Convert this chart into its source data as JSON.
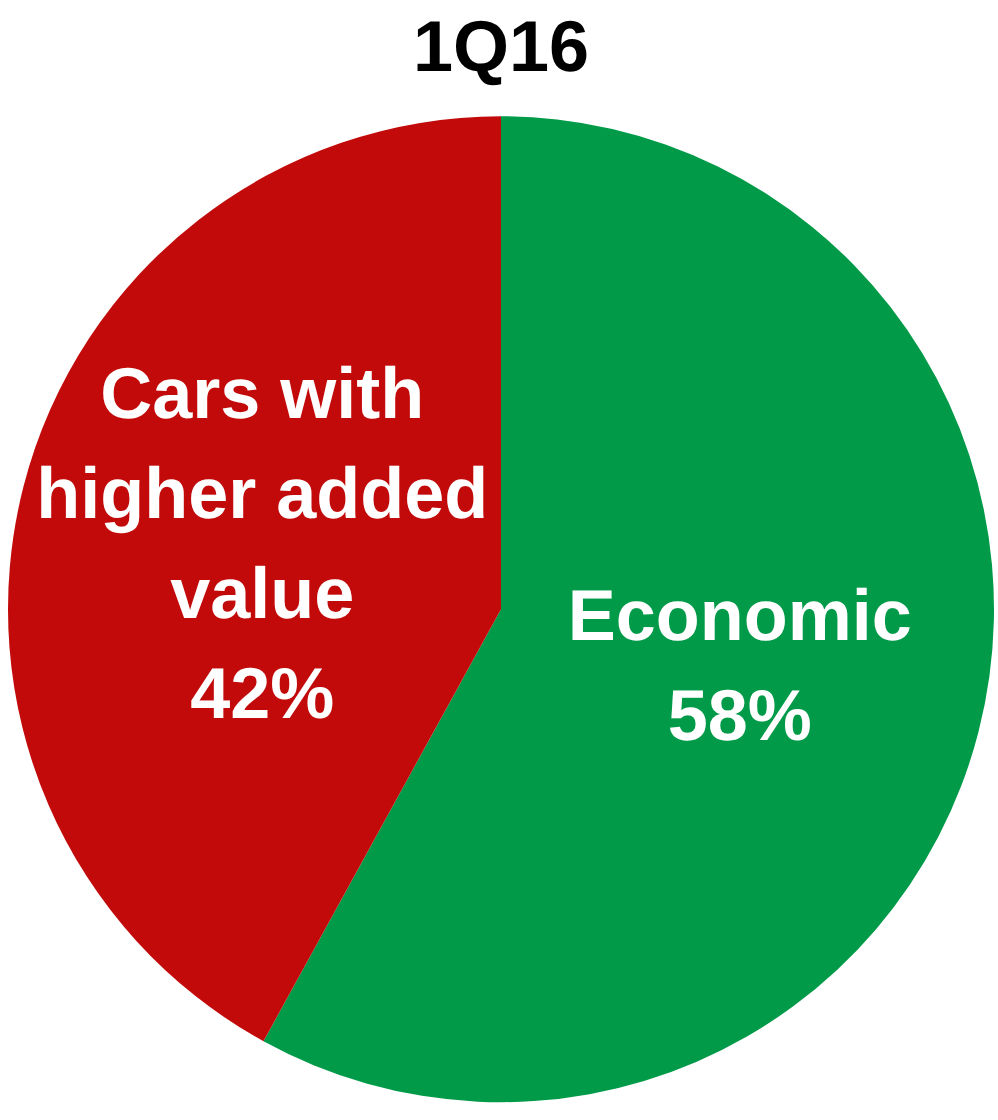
{
  "chart_data": {
    "type": "pie",
    "title": "1Q16",
    "categories": [
      "Economic",
      "Cars with higher added value"
    ],
    "values": [
      58,
      42
    ],
    "colors": [
      "#009a48",
      "#c20a0a"
    ],
    "value_labels": [
      "58%",
      "42%"
    ],
    "legend": false
  }
}
